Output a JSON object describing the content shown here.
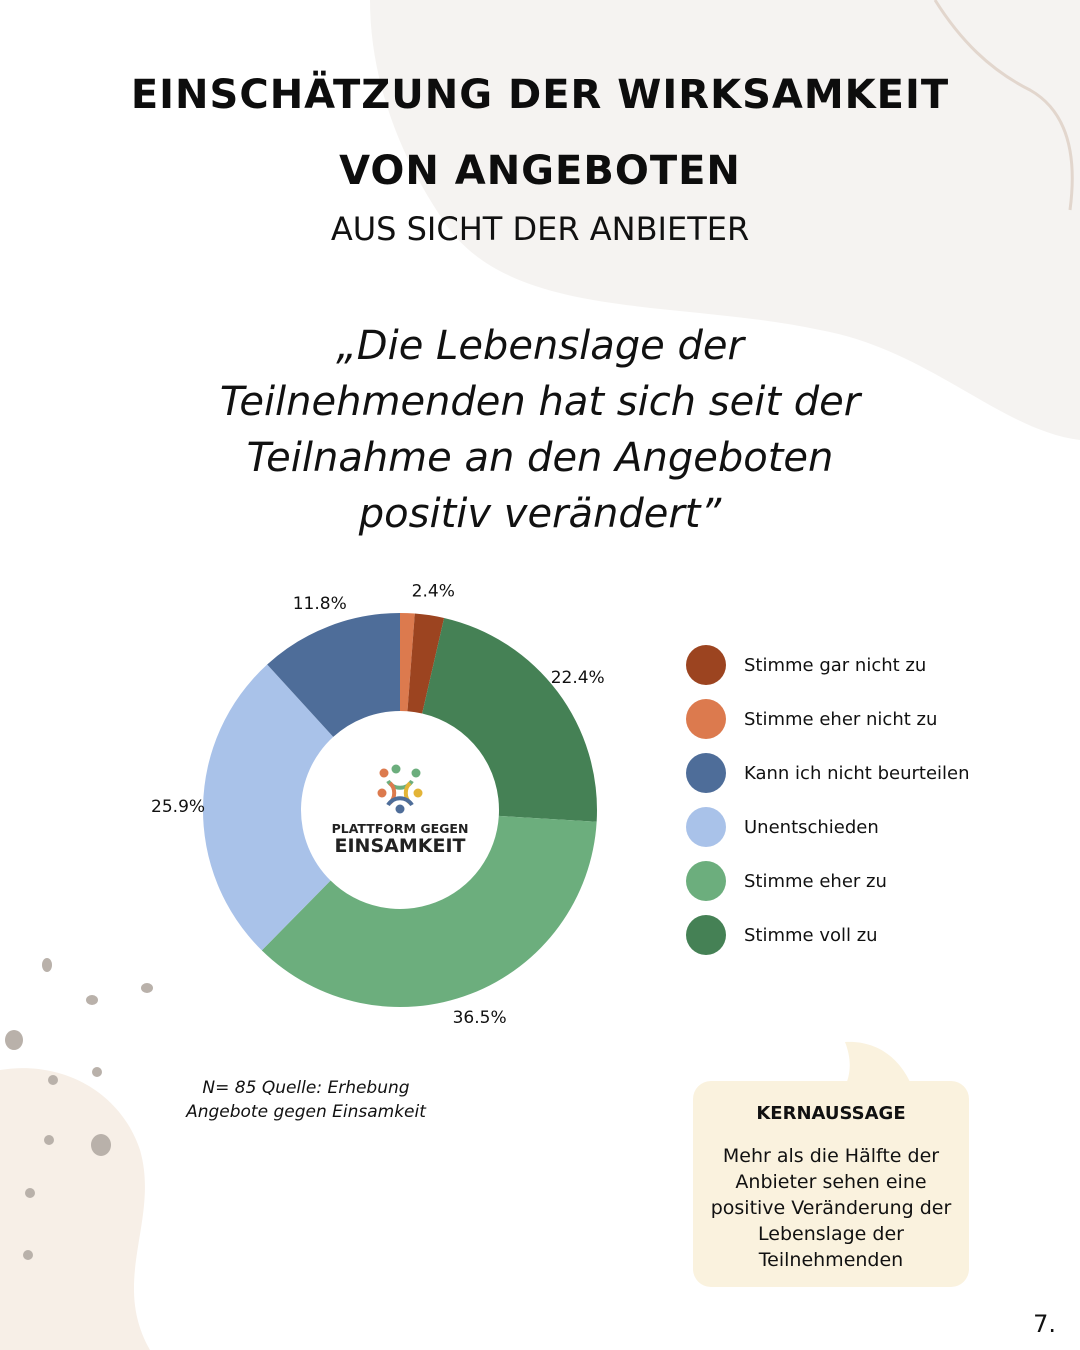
{
  "header": {
    "title_line1": "EINSCHÄTZUNG DER WIRKSAMKEIT",
    "title_line2": "VON ANGEBOTEN",
    "subtitle": "AUS SICHT DER ANBIETER"
  },
  "quote": {
    "lines": [
      "„Die Lebenslage der",
      "Teilnehmenden hat sich seit der",
      "Teilnahme an den Angeboten",
      "positiv verändert”"
    ]
  },
  "logo": {
    "line1": "PLATTFORM GEGEN",
    "line2": "EINSAMKEIT"
  },
  "chart_data": {
    "type": "pie",
    "title": "",
    "start": "top",
    "direction": "clockwise",
    "slices": [
      {
        "label": "Stimme eher nicht zu",
        "value": 1.2,
        "color": "#dc7a4e",
        "display": ""
      },
      {
        "label": "Stimme gar nicht zu",
        "value": 2.4,
        "color": "#9c4420",
        "display": "2.4%"
      },
      {
        "label": "Stimme voll zu",
        "value": 22.4,
        "color": "#458155",
        "display": "22.4%"
      },
      {
        "label": "Stimme eher zu",
        "value": 36.5,
        "color": "#6cae7d",
        "display": "36.5%"
      },
      {
        "label": "Unentschieden",
        "value": 25.9,
        "color": "#a9c2e9",
        "display": "25.9%"
      },
      {
        "label": "Kann ich nicht beurteilen",
        "value": 11.8,
        "color": "#4e6d99",
        "display": "11.8%"
      }
    ],
    "legend_position": "right"
  },
  "legend": [
    {
      "label": "Stimme gar nicht zu",
      "color": "#9c4420"
    },
    {
      "label": "Stimme eher nicht zu",
      "color": "#dc7a4e"
    },
    {
      "label": "Kann ich nicht beurteilen",
      "color": "#4e6d99"
    },
    {
      "label": "Unentschieden",
      "color": "#a9c2e9"
    },
    {
      "label": "Stimme eher zu",
      "color": "#6cae7d"
    },
    {
      "label": "Stimme voll zu",
      "color": "#458155"
    }
  ],
  "source": {
    "line1": "N= 85 Quelle: Erhebung",
    "line2": "Angebote gegen Einsamkeit"
  },
  "kernaussage": {
    "heading": "KERNAUSSAGE",
    "lines": [
      "Mehr als die Hälfte der",
      "Anbieter sehen eine",
      "positive Veränderung der",
      "Lebenslage der",
      "Teilnehmenden"
    ]
  },
  "page_number": "7."
}
